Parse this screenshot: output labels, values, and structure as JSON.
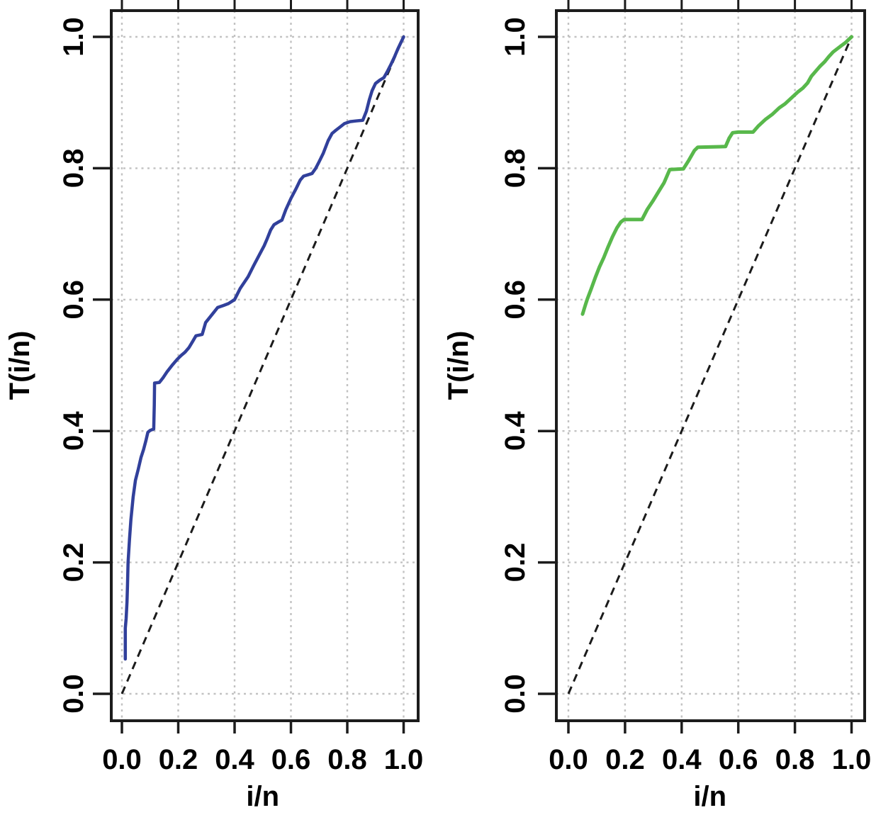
{
  "figure": {
    "background_color": "#ffffff",
    "grid_color": "#c2c2c2",
    "box_color": "#1c1c1c",
    "tick_color": "#1c1c1c",
    "text_color": "#000000"
  },
  "chart_data": [
    {
      "type": "line",
      "title": "",
      "xlabel": "i/n",
      "ylabel": "T(i/n)",
      "xlim": [
        0,
        1
      ],
      "ylim": [
        0,
        1
      ],
      "grid": "dotted at every 0.2",
      "legend": "none",
      "xticks": [
        0.0,
        0.2,
        0.4,
        0.6,
        0.8,
        1.0
      ],
      "yticks": [
        0.0,
        0.2,
        0.4,
        0.6,
        0.8,
        1.0
      ],
      "xticklabels": [
        "0.0",
        "0.2",
        "0.4",
        "0.6",
        "0.8",
        "1.0"
      ],
      "yticklabels": [
        "0.0",
        "0.2",
        "0.4",
        "0.6",
        "0.8",
        "1.0"
      ],
      "reference_line": {
        "name": "dashed diagonal y = x",
        "style": "dashed",
        "color": "#1b1b1b",
        "points": [
          [
            0,
            0
          ],
          [
            1,
            1
          ]
        ]
      },
      "series": [
        {
          "name": "scaled TTT transform curve (left panel)",
          "color": "#31409b",
          "width": 4.5,
          "points": [
            [
              0.012,
              0.053
            ],
            [
              0.012,
              0.1
            ],
            [
              0.015,
              0.115
            ],
            [
              0.018,
              0.14
            ],
            [
              0.02,
              0.165
            ],
            [
              0.022,
              0.2
            ],
            [
              0.027,
              0.235
            ],
            [
              0.032,
              0.265
            ],
            [
              0.04,
              0.3
            ],
            [
              0.048,
              0.325
            ],
            [
              0.058,
              0.342
            ],
            [
              0.068,
              0.36
            ],
            [
              0.077,
              0.372
            ],
            [
              0.085,
              0.385
            ],
            [
              0.092,
              0.398
            ],
            [
              0.1,
              0.401
            ],
            [
              0.113,
              0.403
            ],
            [
              0.115,
              0.44
            ],
            [
              0.116,
              0.473
            ],
            [
              0.133,
              0.474
            ],
            [
              0.146,
              0.481
            ],
            [
              0.16,
              0.49
            ],
            [
              0.178,
              0.5
            ],
            [
              0.196,
              0.509
            ],
            [
              0.21,
              0.515
            ],
            [
              0.224,
              0.52
            ],
            [
              0.238,
              0.527
            ],
            [
              0.252,
              0.537
            ],
            [
              0.263,
              0.545
            ],
            [
              0.285,
              0.547
            ],
            [
              0.297,
              0.565
            ],
            [
              0.31,
              0.572
            ],
            [
              0.325,
              0.58
            ],
            [
              0.34,
              0.588
            ],
            [
              0.36,
              0.591
            ],
            [
              0.378,
              0.594
            ],
            [
              0.4,
              0.6
            ],
            [
              0.42,
              0.617
            ],
            [
              0.448,
              0.635
            ],
            [
              0.468,
              0.652
            ],
            [
              0.49,
              0.67
            ],
            [
              0.505,
              0.682
            ],
            [
              0.516,
              0.693
            ],
            [
              0.528,
              0.706
            ],
            [
              0.54,
              0.714
            ],
            [
              0.555,
              0.718
            ],
            [
              0.568,
              0.721
            ],
            [
              0.582,
              0.737
            ],
            [
              0.6,
              0.754
            ],
            [
              0.617,
              0.768
            ],
            [
              0.633,
              0.782
            ],
            [
              0.645,
              0.788
            ],
            [
              0.66,
              0.79
            ],
            [
              0.675,
              0.792
            ],
            [
              0.688,
              0.8
            ],
            [
              0.7,
              0.81
            ],
            [
              0.715,
              0.823
            ],
            [
              0.732,
              0.842
            ],
            [
              0.746,
              0.853
            ],
            [
              0.76,
              0.858
            ],
            [
              0.775,
              0.863
            ],
            [
              0.79,
              0.868
            ],
            [
              0.81,
              0.871
            ],
            [
              0.83,
              0.872
            ],
            [
              0.855,
              0.873
            ],
            [
              0.868,
              0.887
            ],
            [
              0.878,
              0.904
            ],
            [
              0.888,
              0.918
            ],
            [
              0.9,
              0.929
            ],
            [
              0.915,
              0.934
            ],
            [
              0.93,
              0.938
            ],
            [
              0.942,
              0.947
            ],
            [
              0.955,
              0.958
            ],
            [
              0.968,
              0.97
            ],
            [
              0.98,
              0.982
            ],
            [
              1.0,
              1.0
            ]
          ]
        }
      ]
    },
    {
      "type": "line",
      "title": "",
      "xlabel": "i/n",
      "ylabel": "T(i/n)",
      "xlim": [
        0,
        1
      ],
      "ylim": [
        0,
        1
      ],
      "grid": "dotted at every 0.2",
      "legend": "none",
      "xticks": [
        0.0,
        0.2,
        0.4,
        0.6,
        0.8,
        1.0
      ],
      "yticks": [
        0.0,
        0.2,
        0.4,
        0.6,
        0.8,
        1.0
      ],
      "xticklabels": [
        "0.0",
        "0.2",
        "0.4",
        "0.6",
        "0.8",
        "1.0"
      ],
      "yticklabels": [
        "0.0",
        "0.2",
        "0.4",
        "0.6",
        "0.8",
        "1.0"
      ],
      "reference_line": {
        "name": "dashed diagonal y = x",
        "style": "dashed",
        "color": "#1b1b1b",
        "points": [
          [
            0,
            0
          ],
          [
            1,
            1
          ]
        ]
      },
      "series": [
        {
          "name": "scaled TTT transform curve (right panel)",
          "color": "#58b84b",
          "width": 5,
          "points": [
            [
              0.05,
              0.578
            ],
            [
              0.06,
              0.592
            ],
            [
              0.066,
              0.6
            ],
            [
              0.08,
              0.616
            ],
            [
              0.096,
              0.635
            ],
            [
              0.11,
              0.65
            ],
            [
              0.125,
              0.664
            ],
            [
              0.14,
              0.68
            ],
            [
              0.155,
              0.695
            ],
            [
              0.171,
              0.709
            ],
            [
              0.185,
              0.718
            ],
            [
              0.197,
              0.722
            ],
            [
              0.26,
              0.722
            ],
            [
              0.278,
              0.737
            ],
            [
              0.298,
              0.75
            ],
            [
              0.318,
              0.764
            ],
            [
              0.338,
              0.778
            ],
            [
              0.352,
              0.792
            ],
            [
              0.358,
              0.798
            ],
            [
              0.406,
              0.799
            ],
            [
              0.425,
              0.812
            ],
            [
              0.445,
              0.827
            ],
            [
              0.457,
              0.832
            ],
            [
              0.555,
              0.833
            ],
            [
              0.568,
              0.846
            ],
            [
              0.58,
              0.854
            ],
            [
              0.6,
              0.855
            ],
            [
              0.652,
              0.855
            ],
            [
              0.67,
              0.864
            ],
            [
              0.695,
              0.874
            ],
            [
              0.72,
              0.882
            ],
            [
              0.745,
              0.892
            ],
            [
              0.765,
              0.898
            ],
            [
              0.79,
              0.908
            ],
            [
              0.81,
              0.916
            ],
            [
              0.828,
              0.922
            ],
            [
              0.845,
              0.93
            ],
            [
              0.858,
              0.94
            ],
            [
              0.872,
              0.947
            ],
            [
              0.888,
              0.955
            ],
            [
              0.905,
              0.962
            ],
            [
              0.92,
              0.97
            ],
            [
              0.935,
              0.977
            ],
            [
              0.95,
              0.982
            ],
            [
              0.965,
              0.987
            ],
            [
              0.978,
              0.991
            ],
            [
              1.0,
              1.0
            ]
          ]
        }
      ]
    }
  ]
}
